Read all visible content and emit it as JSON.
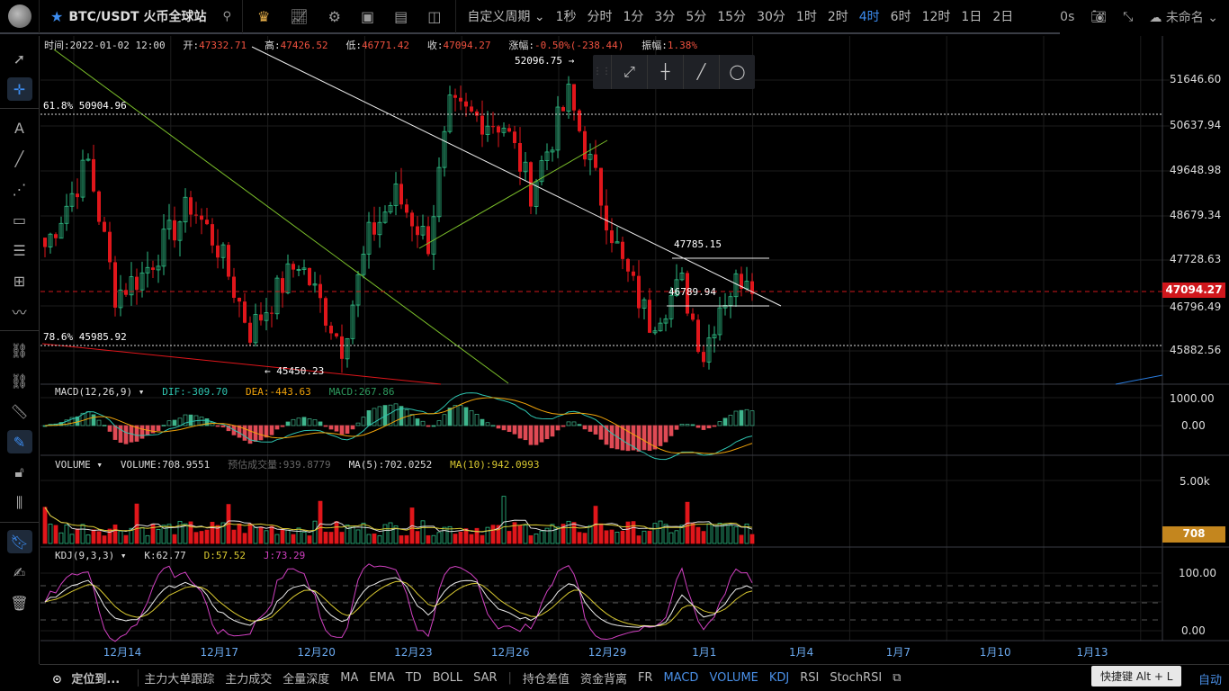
{
  "header": {
    "symbol": "BTC/USDT 火币全球站",
    "periods": [
      "自定义周期 ⌄",
      "1秒",
      "分时",
      "1分",
      "3分",
      "5分",
      "15分",
      "30分",
      "1时",
      "2时",
      "4时",
      "6时",
      "12时",
      "1日",
      "2日"
    ],
    "active_period": "4时",
    "countdown": "0s",
    "layout_name": "未命名 ⌄"
  },
  "info": {
    "time_label": "时间:",
    "time": "2022-01-02 12:00",
    "open_label": "开:",
    "open": "47332.71",
    "high_label": "高:",
    "high": "47426.52",
    "low_label": "低:",
    "low": "46771.42",
    "close_label": "收:",
    "close": "47094.27",
    "change_label": "涨幅:",
    "change": "-0.50%(-238.44)",
    "amp_label": "振幅:",
    "amp": "1.38%"
  },
  "annotations": {
    "high_mark": "52096.75 →",
    "low_mark": "← 45450.23",
    "fib618": "61.8% 50904.96",
    "fib786": "78.6% 45985.92",
    "box_top": "47785.15",
    "box_bottom": "46789.94"
  },
  "price_axis": [
    "51646.60",
    "50637.94",
    "49648.98",
    "48679.34",
    "47728.63",
    "46796.49",
    "45882.56"
  ],
  "last_price": "47094.27",
  "macd": {
    "title": "MACD(12,26,9) ▾",
    "dif": "DIF:-309.70",
    "dea": "DEA:-443.63",
    "macd": "MACD:267.86",
    "axis": [
      "1000.00",
      "0.00"
    ]
  },
  "volume": {
    "title": "VOLUME ▾",
    "volume": "VOLUME:708.9551",
    "est": "预估成交量:939.8779",
    "ma5": "MA(5):702.0252",
    "ma10": "MA(10):942.0993",
    "axis": [
      "5.00k"
    ],
    "last": "708"
  },
  "kdj": {
    "title": "KDJ(9,3,3) ▾",
    "k": "K:62.77",
    "d": "D:57.52",
    "j": "J:73.29",
    "axis": [
      "100.00",
      "0.00"
    ]
  },
  "x_axis": [
    "12月14",
    "12月17",
    "12月20",
    "12月23",
    "12月26",
    "12月29",
    "1月1",
    "1月4",
    "1月7",
    "1月10",
    "1月13"
  ],
  "bottom": {
    "locate": "定位到...",
    "items": [
      "主力大单跟踪",
      "主力成交",
      "全量深度",
      "MA",
      "EMA",
      "TD",
      "BOLL",
      "SAR",
      "|",
      "持仓差值",
      "资金背离",
      "FR",
      "MACD",
      "VOLUME",
      "KDJ",
      "RSI",
      "StochRSI"
    ],
    "active": [
      "MACD",
      "VOLUME",
      "KDJ"
    ],
    "tooltip": "快捷键 Alt + L",
    "auto": "自动"
  },
  "colors": {
    "up": "#2ebd85",
    "down": "#e0161b",
    "accent": "#3c8cf0"
  },
  "chart_data": {
    "type": "candlestick",
    "interval": "4h",
    "count": 132,
    "close_keypoints": [
      [
        0,
        48100
      ],
      [
        8,
        49900
      ],
      [
        13,
        47100
      ],
      [
        18,
        47500
      ],
      [
        27,
        49000
      ],
      [
        32,
        48100
      ],
      [
        38,
        46300
      ],
      [
        47,
        47800
      ],
      [
        55,
        46000
      ],
      [
        60,
        48300
      ],
      [
        65,
        49200
      ],
      [
        71,
        48200
      ],
      [
        75,
        51000
      ],
      [
        85,
        50700
      ],
      [
        90,
        49300
      ],
      [
        97,
        51300
      ],
      [
        102,
        49500
      ],
      [
        107,
        47700
      ],
      [
        112,
        46500
      ],
      [
        118,
        47300
      ],
      [
        122,
        45800
      ],
      [
        125,
        46900
      ],
      [
        130,
        47600
      ],
      [
        131,
        47094
      ]
    ]
  }
}
